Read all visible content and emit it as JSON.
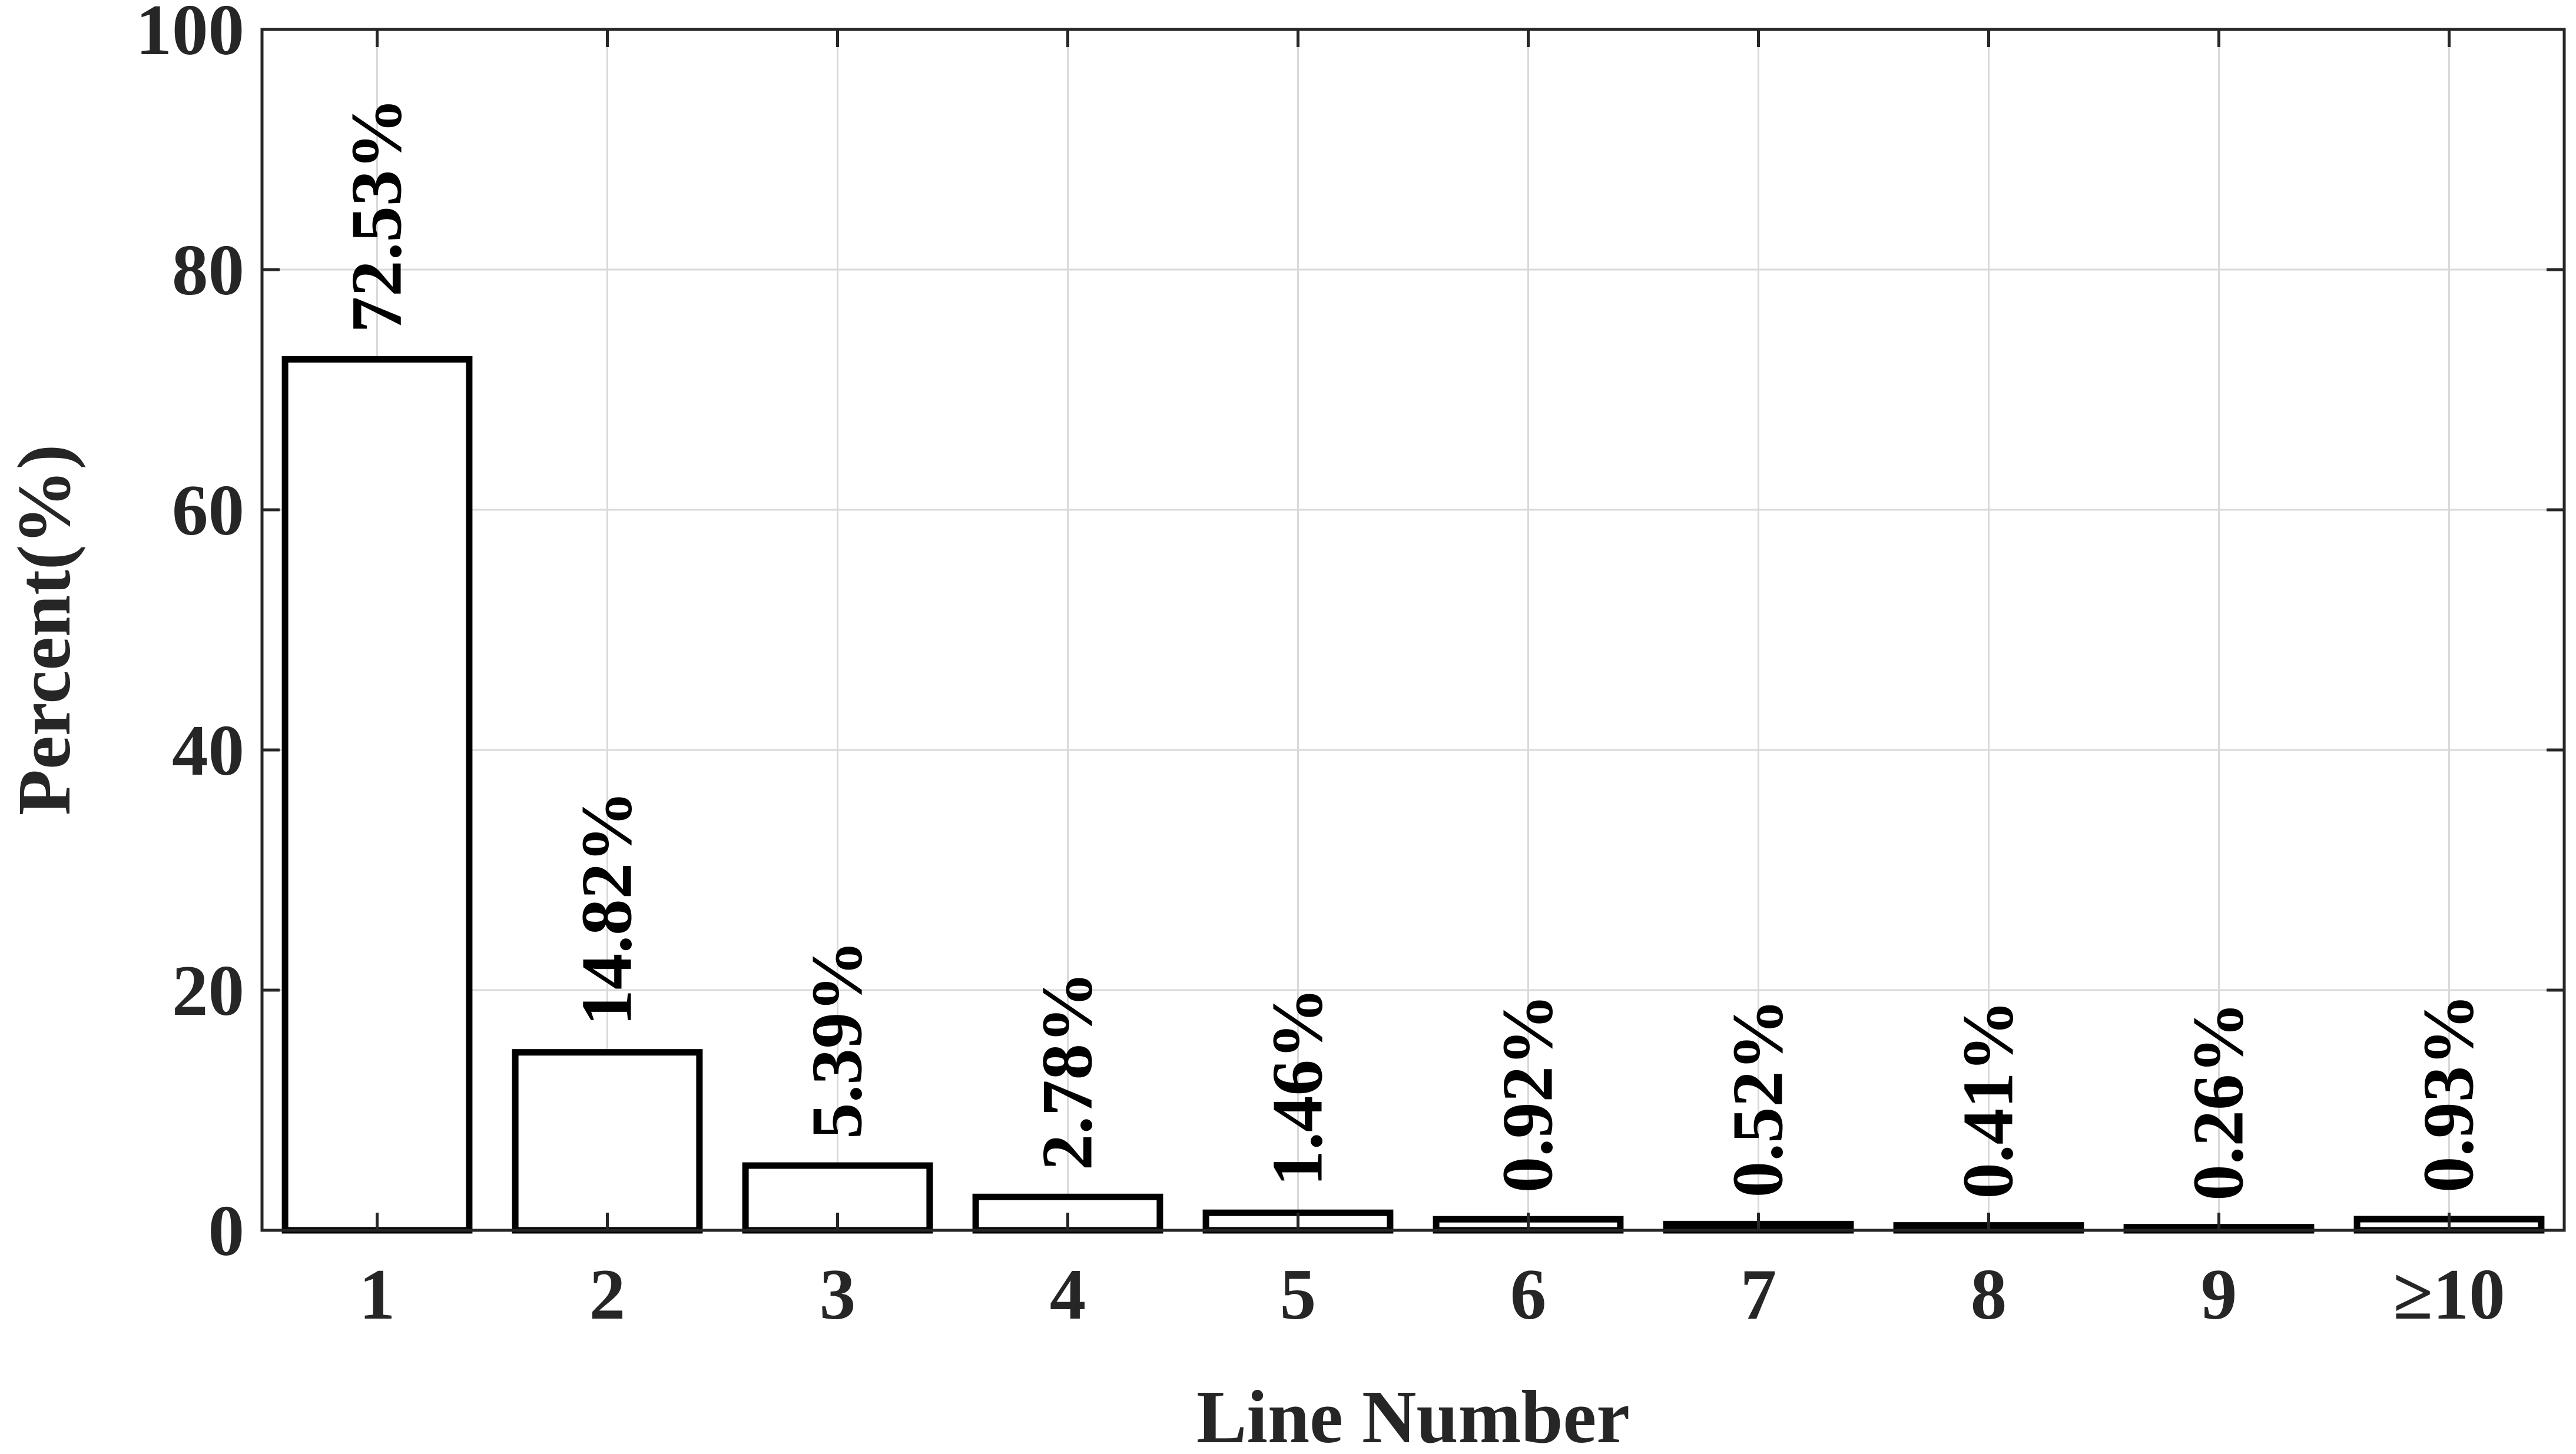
{
  "chart_data": {
    "type": "bar",
    "categories": [
      "1",
      "2",
      "3",
      "4",
      "5",
      "6",
      "7",
      "8",
      "9",
      "≥10"
    ],
    "values": [
      72.53,
      14.82,
      5.39,
      2.78,
      1.46,
      0.92,
      0.52,
      0.41,
      0.26,
      0.93
    ],
    "data_labels": [
      "72.53%",
      "14.82%",
      "5.39%",
      "2.78%",
      "1.46%",
      "0.92%",
      "0.52%",
      "0.41%",
      "0.26%",
      "0.93%"
    ],
    "xlabel": "Line Number",
    "ylabel": "Percent(%)",
    "ylim": [
      0,
      100
    ],
    "yticks": [
      0,
      20,
      40,
      60,
      80,
      100
    ],
    "grid": true,
    "bar_fill": "#ffffff",
    "bar_edge": "#000000"
  }
}
